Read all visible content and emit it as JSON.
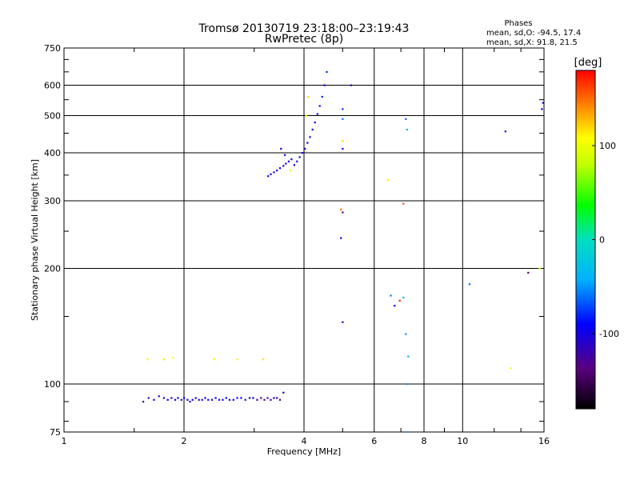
{
  "chart_data": {
    "type": "scatter",
    "title": "Tromsø 20130719 23:18:00–23:19:43",
    "subtitle": "RwPretec (8p)",
    "xlabel": "Frequency [MHz]",
    "ylabel": "Stationary phase Virtual Height [km]",
    "x_scale": "log",
    "y_scale": "log",
    "xlim": [
      1,
      16
    ],
    "ylim": [
      75,
      750
    ],
    "x_ticks": [
      "1",
      "2",
      "4",
      "6",
      "8",
      "10",
      "16"
    ],
    "y_ticks": [
      "75",
      "100",
      "200",
      "300",
      "400",
      "500",
      "600",
      "750"
    ],
    "grid": true,
    "phases_box": {
      "title": "Phases",
      "line_o": "mean, sd,O:  -94.5, 17.4",
      "line_x": "mean, sd,X:  91.8, 21.5"
    },
    "colorbar": {
      "label": "[deg]",
      "ticks": [
        "100",
        "0",
        "-100"
      ],
      "range": [
        -180,
        180
      ]
    },
    "points": [
      {
        "x": 1.58,
        "y": 90,
        "phase": -150
      },
      {
        "x": 1.63,
        "y": 92,
        "phase": -110
      },
      {
        "x": 1.68,
        "y": 91,
        "phase": -95
      },
      {
        "x": 1.73,
        "y": 93,
        "phase": -120
      },
      {
        "x": 1.78,
        "y": 92,
        "phase": -100
      },
      {
        "x": 1.82,
        "y": 91,
        "phase": -90
      },
      {
        "x": 1.86,
        "y": 92,
        "phase": -105
      },
      {
        "x": 1.9,
        "y": 91,
        "phase": -95
      },
      {
        "x": 1.93,
        "y": 92,
        "phase": -100
      },
      {
        "x": 1.97,
        "y": 91,
        "phase": -110
      },
      {
        "x": 2.0,
        "y": 92,
        "phase": -95
      },
      {
        "x": 2.04,
        "y": 91,
        "phase": -100
      },
      {
        "x": 2.07,
        "y": 90,
        "phase": -105
      },
      {
        "x": 2.1,
        "y": 91,
        "phase": -95
      },
      {
        "x": 2.14,
        "y": 92,
        "phase": -90
      },
      {
        "x": 2.18,
        "y": 91,
        "phase": -100
      },
      {
        "x": 2.22,
        "y": 91,
        "phase": -105
      },
      {
        "x": 2.26,
        "y": 92,
        "phase": -95
      },
      {
        "x": 2.3,
        "y": 91,
        "phase": -100
      },
      {
        "x": 2.35,
        "y": 91,
        "phase": -110
      },
      {
        "x": 2.4,
        "y": 92,
        "phase": -95
      },
      {
        "x": 2.45,
        "y": 91,
        "phase": -100
      },
      {
        "x": 2.5,
        "y": 91,
        "phase": -105
      },
      {
        "x": 2.55,
        "y": 92,
        "phase": -90
      },
      {
        "x": 2.6,
        "y": 91,
        "phase": -100
      },
      {
        "x": 2.66,
        "y": 91,
        "phase": -95
      },
      {
        "x": 2.72,
        "y": 92,
        "phase": -105
      },
      {
        "x": 2.78,
        "y": 92,
        "phase": -100
      },
      {
        "x": 2.85,
        "y": 91,
        "phase": -110
      },
      {
        "x": 2.92,
        "y": 92,
        "phase": -95
      },
      {
        "x": 2.98,
        "y": 92,
        "phase": -100
      },
      {
        "x": 3.05,
        "y": 91,
        "phase": -120
      },
      {
        "x": 3.12,
        "y": 92,
        "phase": -130
      },
      {
        "x": 3.18,
        "y": 91,
        "phase": -140
      },
      {
        "x": 3.24,
        "y": 92,
        "phase": -110
      },
      {
        "x": 3.3,
        "y": 91,
        "phase": -130
      },
      {
        "x": 3.36,
        "y": 92,
        "phase": -100
      },
      {
        "x": 3.42,
        "y": 92,
        "phase": -120
      },
      {
        "x": 3.48,
        "y": 91,
        "phase": -140
      },
      {
        "x": 3.55,
        "y": 95,
        "phase": -90
      },
      {
        "x": 1.62,
        "y": 116,
        "phase": 110
      },
      {
        "x": 1.78,
        "y": 116,
        "phase": 115
      },
      {
        "x": 1.88,
        "y": 117,
        "phase": 110
      },
      {
        "x": 2.38,
        "y": 116,
        "phase": 105
      },
      {
        "x": 2.72,
        "y": 116,
        "phase": 110
      },
      {
        "x": 3.16,
        "y": 116,
        "phase": 115
      },
      {
        "x": 3.25,
        "y": 348,
        "phase": -100
      },
      {
        "x": 3.3,
        "y": 352,
        "phase": -95
      },
      {
        "x": 3.36,
        "y": 356,
        "phase": -110
      },
      {
        "x": 3.42,
        "y": 360,
        "phase": -100
      },
      {
        "x": 3.48,
        "y": 365,
        "phase": -95
      },
      {
        "x": 3.55,
        "y": 370,
        "phase": -100
      },
      {
        "x": 3.6,
        "y": 375,
        "phase": -105
      },
      {
        "x": 3.66,
        "y": 380,
        "phase": -95
      },
      {
        "x": 3.72,
        "y": 385,
        "phase": -100
      },
      {
        "x": 3.78,
        "y": 372,
        "phase": -110
      },
      {
        "x": 3.84,
        "y": 380,
        "phase": -95
      },
      {
        "x": 3.9,
        "y": 390,
        "phase": -100
      },
      {
        "x": 3.96,
        "y": 400,
        "phase": -105
      },
      {
        "x": 4.02,
        "y": 410,
        "phase": -95
      },
      {
        "x": 4.08,
        "y": 425,
        "phase": -100
      },
      {
        "x": 4.14,
        "y": 440,
        "phase": -110
      },
      {
        "x": 4.2,
        "y": 460,
        "phase": -95
      },
      {
        "x": 4.26,
        "y": 480,
        "phase": -100
      },
      {
        "x": 4.32,
        "y": 505,
        "phase": -90
      },
      {
        "x": 4.38,
        "y": 530,
        "phase": -100
      },
      {
        "x": 4.44,
        "y": 560,
        "phase": -80
      },
      {
        "x": 4.5,
        "y": 600,
        "phase": -100
      },
      {
        "x": 4.56,
        "y": 650,
        "phase": -80
      },
      {
        "x": 3.5,
        "y": 410,
        "phase": -100
      },
      {
        "x": 3.58,
        "y": 395,
        "phase": -110
      },
      {
        "x": 3.7,
        "y": 360,
        "phase": 90
      },
      {
        "x": 4.05,
        "y": 500,
        "phase": 100
      },
      {
        "x": 4.1,
        "y": 560,
        "phase": 120
      },
      {
        "x": 5.0,
        "y": 520,
        "phase": -80
      },
      {
        "x": 5.0,
        "y": 490,
        "phase": -60
      },
      {
        "x": 5.0,
        "y": 430,
        "phase": 120
      },
      {
        "x": 5.0,
        "y": 410,
        "phase": -100
      },
      {
        "x": 5.25,
        "y": 600,
        "phase": -110
      },
      {
        "x": 4.95,
        "y": 285,
        "phase": 150
      },
      {
        "x": 5.0,
        "y": 280,
        "phase": -130
      },
      {
        "x": 4.95,
        "y": 240,
        "phase": -100
      },
      {
        "x": 5.0,
        "y": 145,
        "phase": -110
      },
      {
        "x": 6.5,
        "y": 340,
        "phase": 110
      },
      {
        "x": 7.1,
        "y": 295,
        "phase": 160
      },
      {
        "x": 7.2,
        "y": 490,
        "phase": -60
      },
      {
        "x": 7.25,
        "y": 460,
        "phase": -40
      },
      {
        "x": 6.6,
        "y": 170,
        "phase": -60
      },
      {
        "x": 6.75,
        "y": 160,
        "phase": -100
      },
      {
        "x": 6.95,
        "y": 165,
        "phase": 170
      },
      {
        "x": 7.1,
        "y": 168,
        "phase": -40
      },
      {
        "x": 7.2,
        "y": 135,
        "phase": -50
      },
      {
        "x": 7.3,
        "y": 118,
        "phase": -40
      },
      {
        "x": 7.25,
        "y": 100,
        "phase": -50
      },
      {
        "x": 7.2,
        "y": 75,
        "phase": -40
      },
      {
        "x": 10.4,
        "y": 182,
        "phase": -60
      },
      {
        "x": 12.8,
        "y": 455,
        "phase": -110
      },
      {
        "x": 13.2,
        "y": 110,
        "phase": 110
      },
      {
        "x": 14.6,
        "y": 195,
        "phase": -140
      },
      {
        "x": 15.6,
        "y": 200,
        "phase": 100
      },
      {
        "x": 15.8,
        "y": 520,
        "phase": -100
      },
      {
        "x": 15.9,
        "y": 540,
        "phase": -110
      }
    ]
  }
}
